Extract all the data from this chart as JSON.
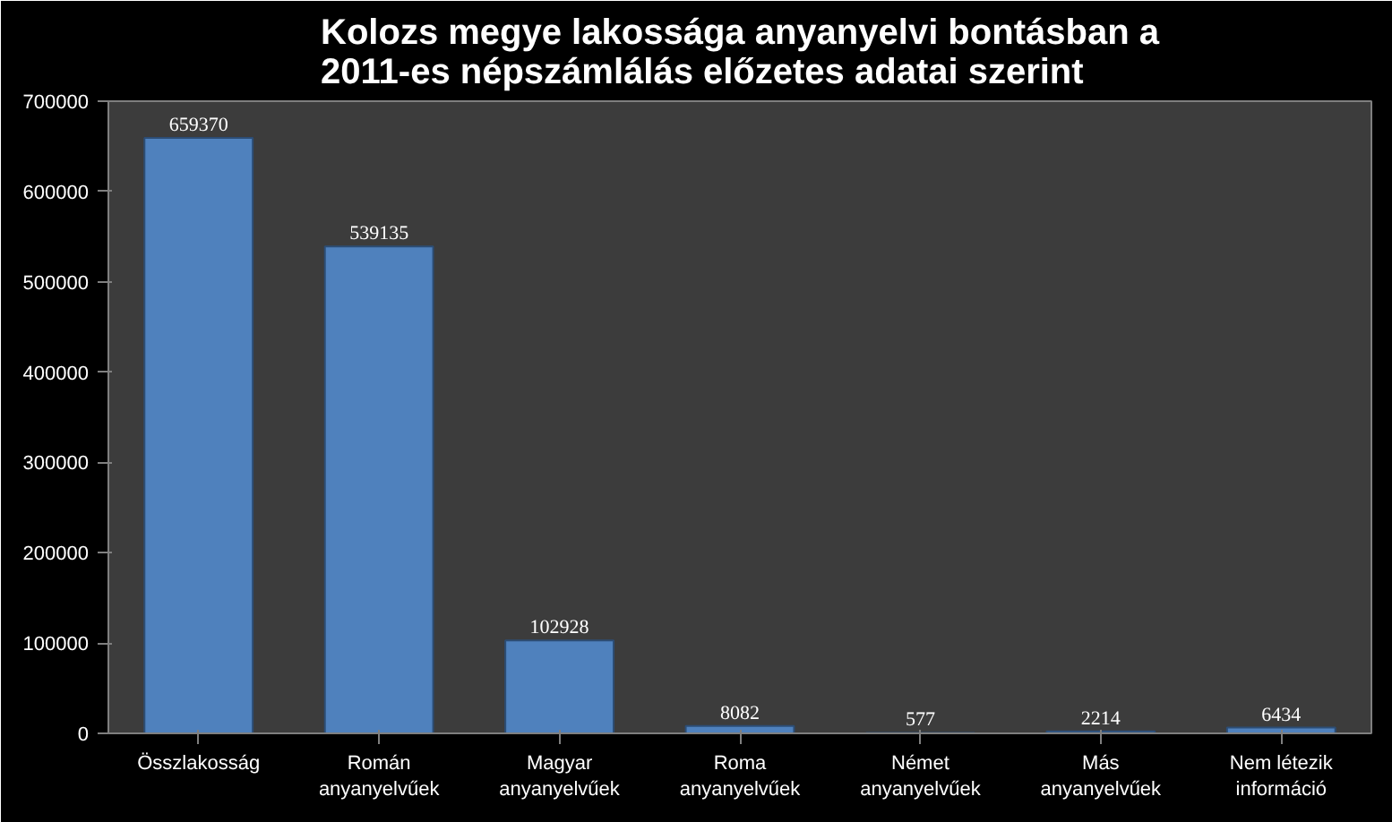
{
  "chart_data": {
    "type": "bar",
    "title": "Kolozs megye lakossága anyanyelvi bontásban a\n2011-es népszámlálás előzetes adatai szerint",
    "categories": [
      "Összlakosság",
      "Román\nanyanyelvűek",
      "Magyar\nanyanyelvűek",
      "Roma\nanyanyelvűek",
      "Német\nanyanyelvűek",
      "Más\nanyanyelvűek",
      "Nem létezik\ninformáció"
    ],
    "values": [
      659370,
      539135,
      102928,
      8082,
      577,
      2214,
      6434
    ],
    "color": "#4f81bd",
    "ylim": [
      0,
      700000
    ],
    "yticks": [
      0,
      100000,
      200000,
      300000,
      400000,
      500000,
      600000,
      700000
    ],
    "grid": false,
    "data_labels": true
  }
}
